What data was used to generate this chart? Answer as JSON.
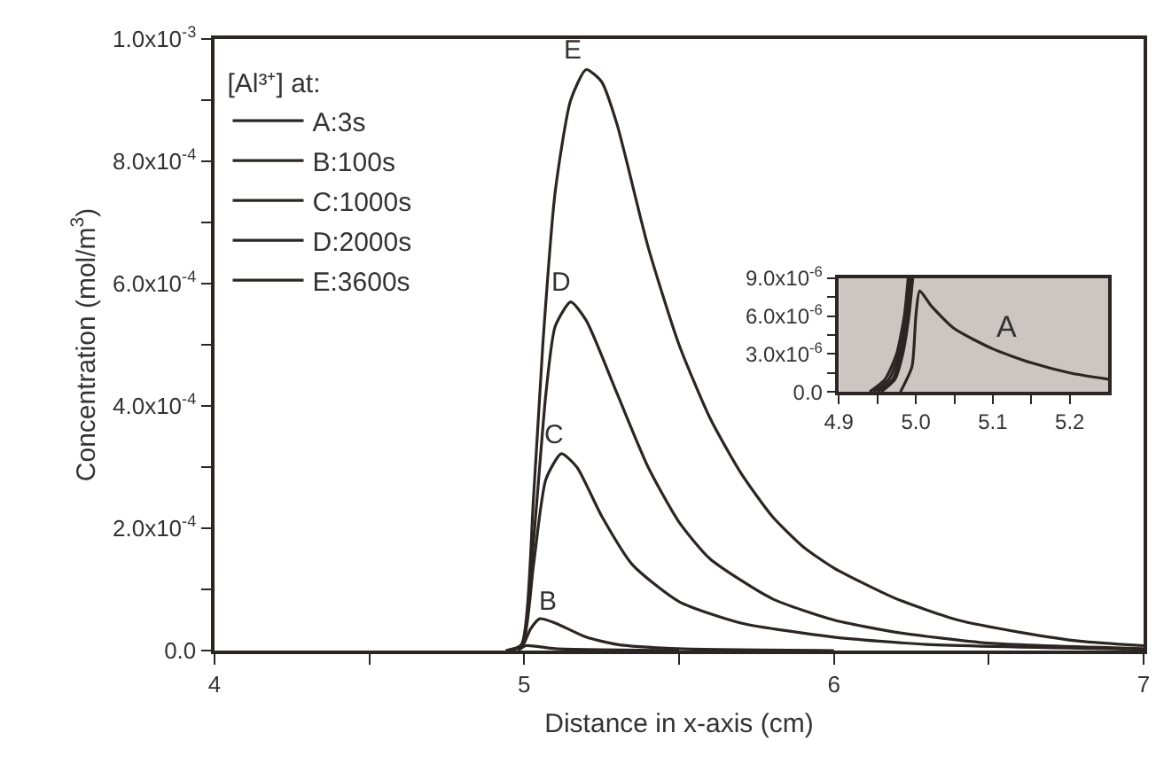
{
  "chart_data": [
    {
      "type": "line",
      "xlabel": "Distance in x-axis (cm)",
      "ylabel": "Concentration (mol/m$^{3}$)",
      "legend_title": "[Al³⁺] at:",
      "legend": "top left",
      "grid": false,
      "marker": "none",
      "line_style": "solid",
      "xlim": [
        4,
        7
      ],
      "xticks": [
        4,
        {
          "value": 4.5,
          "label": null
        },
        5,
        {
          "value": 5.5,
          "label": null
        },
        6,
        {
          "value": 6.5,
          "label": null
        },
        7
      ],
      "ylim": [
        0,
        0.001
      ],
      "yticks": [
        {
          "value": 0,
          "label": "0.0"
        },
        {
          "value": 0.0001,
          "label": null
        },
        {
          "value": 0.0002,
          "label": "2.0x10$^{-4}$"
        },
        {
          "value": 0.0003,
          "label": null
        },
        {
          "value": 0.0004,
          "label": "4.0x10$^{-4}$"
        },
        {
          "value": 0.0005,
          "label": null
        },
        {
          "value": 0.0006,
          "label": "6.0x10$^{-4}$"
        },
        {
          "value": 0.0007,
          "label": null
        },
        {
          "value": 0.0008,
          "label": "8.0x10$^{-4}$"
        },
        {
          "value": 0.0009,
          "label": null
        },
        {
          "value": 0.001,
          "label": "1.0x10$^{-3}$"
        }
      ],
      "annotations": [
        {
          "text": "B",
          "x": 5.1,
          "y": 5e-05
        },
        {
          "text": "C",
          "x": 5.12,
          "y": 0.000322
        },
        {
          "text": "D",
          "x": 5.14,
          "y": 0.00057
        },
        {
          "text": "E",
          "x": 5.18,
          "y": 0.00095
        }
      ],
      "series": [
        {
          "name": "A:3s",
          "color": "#2b2623",
          "x": [
            4.98,
            5.005,
            5.1,
            5.5
          ],
          "values": [
            0,
            8e-06,
            3e-06,
            0
          ]
        },
        {
          "name": "B:100s",
          "color": "#2b2623",
          "x": [
            4.96,
            4.996,
            5.02,
            5.05,
            5.1,
            5.2,
            5.3,
            5.5,
            6
          ],
          "values": [
            0,
            9e-06,
            3.5e-05,
            5.2e-05,
            4.5e-05,
            2.2e-05,
            1e-05,
            3e-06,
            0
          ]
        },
        {
          "name": "C:1000s",
          "color": "#2b2623",
          "x": [
            4.95,
            4.994,
            5.03,
            5.07,
            5.12,
            5.17,
            5.25,
            5.35,
            5.5,
            5.7,
            6,
            6.3,
            7
          ],
          "values": [
            0,
            9e-06,
            0.00014,
            0.00028,
            0.000322,
            0.0003,
            0.00022,
            0.00014,
            8e-05,
            4.5e-05,
            2.2e-05,
            1e-05,
            2e-06
          ]
        },
        {
          "name": "D:2000s",
          "color": "#2b2623",
          "x": [
            4.945,
            4.992,
            5.03,
            5.07,
            5.1,
            5.15,
            5.2,
            5.3,
            5.4,
            5.5,
            5.6,
            5.8,
            6,
            6.2,
            6.5,
            7
          ],
          "values": [
            0,
            9e-06,
            0.00018,
            0.00042,
            0.00053,
            0.00057,
            0.00054,
            0.00042,
            0.0003,
            0.00021,
            0.00015,
            8.5e-05,
            5e-05,
            3e-05,
            1.2e-05,
            3e-06
          ]
        },
        {
          "name": "E:3600s",
          "color": "#2b2623",
          "x": [
            4.94,
            4.99,
            5.03,
            5.06,
            5.1,
            5.15,
            5.2,
            5.25,
            5.3,
            5.4,
            5.5,
            5.6,
            5.7,
            5.8,
            5.9,
            6,
            6.2,
            6.4,
            6.6,
            6.8,
            7
          ],
          "values": [
            0,
            9e-06,
            0.00025,
            0.0005,
            0.00075,
            0.0009,
            0.00095,
            0.00093,
            0.00086,
            0.00066,
            0.0005,
            0.00038,
            0.00029,
            0.00022,
            0.00017,
            0.000135,
            8.5e-05,
            5e-05,
            3e-05,
            1.5e-05,
            8e-06
          ]
        }
      ]
    },
    {
      "type": "line",
      "grid": false,
      "marker": "none",
      "line_style": "solid",
      "xlim": [
        4.9,
        5.25
      ],
      "xticks": [
        4.9,
        {
          "value": 4.95,
          "label": null
        },
        {
          "value": 5.0,
          "label": "5.0"
        },
        {
          "value": 5.05,
          "label": null
        },
        5.1,
        {
          "value": 5.15,
          "label": null
        },
        5.2
      ],
      "ylim": [
        0,
        9e-06
      ],
      "yticks": [
        {
          "value": 0,
          "label": "0.0"
        },
        {
          "value": 1.5e-06,
          "label": null
        },
        {
          "value": 3e-06,
          "label": "3.0x10$^{-6}$"
        },
        {
          "value": 4.5e-06,
          "label": null
        },
        {
          "value": 6e-06,
          "label": "6.0x10$^{-6}$"
        },
        {
          "value": 7.5e-06,
          "label": null
        },
        {
          "value": 9e-06,
          "label": "9.0x10$^{-6}$"
        }
      ],
      "bands": [
        {
          "axis": "x",
          "from": 4.9,
          "to": 5.25,
          "color": "#cdc5c2"
        }
      ],
      "annotations": [
        "A"
      ],
      "series": [
        {
          "color": "#2b2623",
          "x": [
            4.98,
            4.995,
            5.0,
            5.005,
            5.02,
            5.05,
            5.1,
            5.15,
            5.2,
            5.25
          ],
          "values": [
            0,
            2e-06,
            6e-06,
            8e-06,
            6.8e-06,
            5e-06,
            3.4e-06,
            2.3e-06,
            1.5e-06,
            1e-06
          ]
        },
        {
          "color": "#2b2623",
          "x": [
            4.955,
            4.973,
            4.983,
            4.991,
            4.996
          ],
          "values": [
            0,
            1e-06,
            3e-06,
            6e-06,
            9e-06
          ]
        },
        {
          "color": "#2b2623",
          "x": [
            4.95,
            4.97,
            4.98,
            4.989,
            4.994
          ],
          "values": [
            0,
            1e-06,
            3e-06,
            6e-06,
            9e-06
          ]
        },
        {
          "color": "#2b2623",
          "x": [
            4.945,
            4.965,
            4.978,
            4.987,
            4.992
          ],
          "values": [
            0,
            1e-06,
            3e-06,
            6e-06,
            9e-06
          ]
        },
        {
          "color": "#2b2623",
          "x": [
            4.94,
            4.96,
            4.975,
            4.985,
            4.99
          ],
          "values": [
            0,
            1e-06,
            3e-06,
            6e-06,
            9e-06
          ]
        }
      ]
    }
  ]
}
